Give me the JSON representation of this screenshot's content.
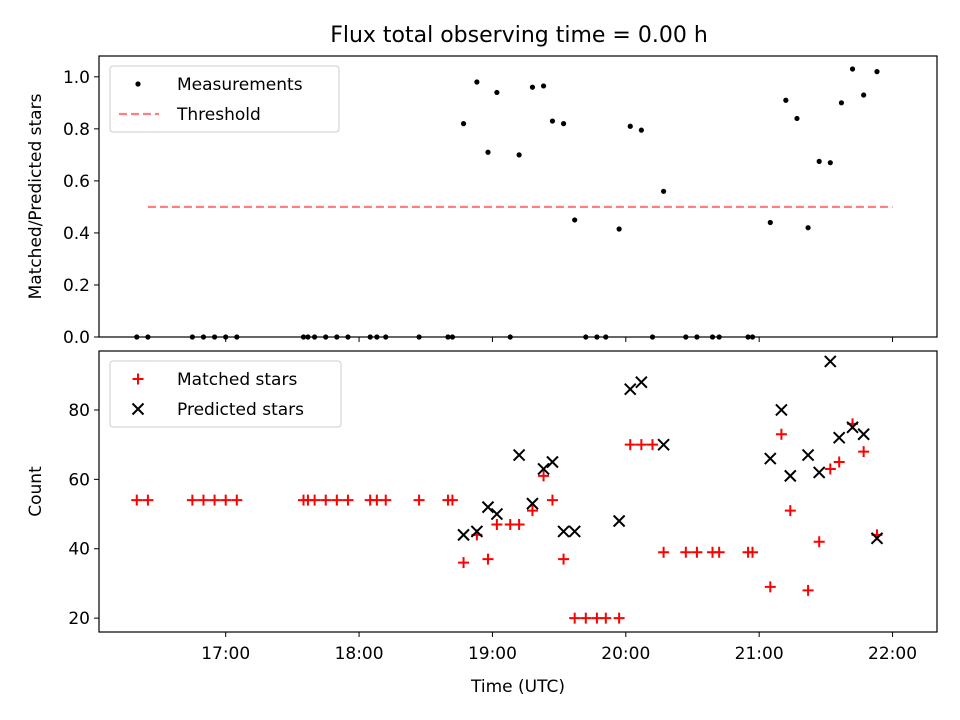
{
  "title": "Flux total observing time = 0.00 h",
  "chart_data": [
    {
      "type": "scatter",
      "xlabel": "",
      "ylabel": "Matched/Predicted stars",
      "xlim": [
        "16:03",
        "22:20"
      ],
      "ylim": [
        0,
        1.08
      ],
      "yticks": [
        0.0,
        0.2,
        0.4,
        0.6,
        0.8,
        1.0
      ],
      "ytick_labels": [
        "0.0",
        "0.2",
        "0.4",
        "0.6",
        "0.8",
        "1.0"
      ],
      "grid": false,
      "legend": "top-left",
      "series": [
        {
          "name": "Measurements",
          "marker": "dot",
          "color": "#000000",
          "points": [
            [
              "16:20",
              0
            ],
            [
              "16:25",
              0
            ],
            [
              "16:45",
              0
            ],
            [
              "16:50",
              0
            ],
            [
              "16:55",
              0
            ],
            [
              "17:00",
              0
            ],
            [
              "17:05",
              0
            ],
            [
              "17:35",
              0
            ],
            [
              "17:37",
              0
            ],
            [
              "17:40",
              0
            ],
            [
              "17:45",
              0
            ],
            [
              "17:50",
              0
            ],
            [
              "17:55",
              0
            ],
            [
              "18:05",
              0
            ],
            [
              "18:08",
              0
            ],
            [
              "18:12",
              0
            ],
            [
              "18:27",
              0
            ],
            [
              "18:40",
              0
            ],
            [
              "18:42",
              0
            ],
            [
              "18:47",
              0.82
            ],
            [
              "18:53",
              0.98
            ],
            [
              "18:58",
              0.71
            ],
            [
              "19:02",
              0.94
            ],
            [
              "19:08",
              0
            ],
            [
              "19:12",
              0.7
            ],
            [
              "19:18",
              0.96
            ],
            [
              "19:23",
              0.965
            ],
            [
              "19:27",
              0.83
            ],
            [
              "19:32",
              0.82
            ],
            [
              "19:37",
              0.45
            ],
            [
              "19:42",
              0
            ],
            [
              "19:47",
              0
            ],
            [
              "19:51",
              0
            ],
            [
              "19:57",
              0.415
            ],
            [
              "20:02",
              0.81
            ],
            [
              "20:07",
              0.795
            ],
            [
              "20:12",
              0
            ],
            [
              "20:17",
              0.56
            ],
            [
              "20:27",
              0
            ],
            [
              "20:32",
              0
            ],
            [
              "20:39",
              0
            ],
            [
              "20:42",
              0
            ],
            [
              "20:55",
              0
            ],
            [
              "20:57",
              0
            ],
            [
              "21:05",
              0.44
            ],
            [
              "21:12",
              0.91
            ],
            [
              "21:17",
              0.84
            ],
            [
              "21:22",
              0.42
            ],
            [
              "21:27",
              0.675
            ],
            [
              "21:32",
              0.67
            ],
            [
              "21:37",
              0.9
            ],
            [
              "21:42",
              1.03
            ],
            [
              "21:47",
              0.93
            ],
            [
              "21:53",
              1.02
            ]
          ]
        },
        {
          "name": "Threshold",
          "style": "dashed",
          "color": "#ff7f7f",
          "points": [
            [
              "16:25",
              0.5
            ],
            [
              "22:00",
              0.5
            ]
          ]
        }
      ]
    },
    {
      "type": "scatter",
      "xlabel": "Time (UTC)",
      "ylabel": "Count",
      "xlim": [
        "16:03",
        "22:20"
      ],
      "ylim": [
        16,
        97
      ],
      "yticks": [
        20,
        40,
        60,
        80
      ],
      "ytick_labels": [
        "20",
        "40",
        "60",
        "80"
      ],
      "xticks": [
        "17:00",
        "18:00",
        "19:00",
        "20:00",
        "21:00",
        "22:00"
      ],
      "grid": false,
      "legend": "top-left",
      "series": [
        {
          "name": "Matched stars",
          "marker": "plus",
          "color": "#ff0000",
          "points": [
            [
              "16:20",
              54
            ],
            [
              "16:25",
              54
            ],
            [
              "16:45",
              54
            ],
            [
              "16:50",
              54
            ],
            [
              "16:55",
              54
            ],
            [
              "17:00",
              54
            ],
            [
              "17:05",
              54
            ],
            [
              "17:35",
              54
            ],
            [
              "17:37",
              54
            ],
            [
              "17:40",
              54
            ],
            [
              "17:45",
              54
            ],
            [
              "17:50",
              54
            ],
            [
              "17:55",
              54
            ],
            [
              "18:05",
              54
            ],
            [
              "18:08",
              54
            ],
            [
              "18:12",
              54
            ],
            [
              "18:27",
              54
            ],
            [
              "18:40",
              54
            ],
            [
              "18:42",
              54
            ],
            [
              "18:47",
              36
            ],
            [
              "18:53",
              44
            ],
            [
              "18:58",
              37
            ],
            [
              "19:02",
              47
            ],
            [
              "19:08",
              47
            ],
            [
              "19:12",
              47
            ],
            [
              "19:18",
              51
            ],
            [
              "19:23",
              61
            ],
            [
              "19:27",
              54
            ],
            [
              "19:32",
              37
            ],
            [
              "19:37",
              20
            ],
            [
              "19:42",
              20
            ],
            [
              "19:47",
              20
            ],
            [
              "19:51",
              20
            ],
            [
              "19:57",
              20
            ],
            [
              "20:02",
              70
            ],
            [
              "20:07",
              70
            ],
            [
              "20:12",
              70
            ],
            [
              "20:17",
              39
            ],
            [
              "20:27",
              39
            ],
            [
              "20:32",
              39
            ],
            [
              "20:39",
              39
            ],
            [
              "20:42",
              39
            ],
            [
              "20:55",
              39
            ],
            [
              "20:57",
              39
            ],
            [
              "21:05",
              29
            ],
            [
              "21:10",
              73
            ],
            [
              "21:14",
              51
            ],
            [
              "21:22",
              28
            ],
            [
              "21:27",
              42
            ],
            [
              "21:32",
              63
            ],
            [
              "21:36",
              65
            ],
            [
              "21:42",
              76
            ],
            [
              "21:47",
              68
            ],
            [
              "21:53",
              44
            ]
          ]
        },
        {
          "name": "Predicted stars",
          "marker": "x",
          "color": "#000000",
          "points": [
            [
              "18:47",
              44
            ],
            [
              "18:53",
              45
            ],
            [
              "18:58",
              52
            ],
            [
              "19:02",
              50
            ],
            [
              "19:12",
              67
            ],
            [
              "19:18",
              53
            ],
            [
              "19:23",
              63
            ],
            [
              "19:27",
              65
            ],
            [
              "19:32",
              45
            ],
            [
              "19:37",
              45
            ],
            [
              "19:57",
              48
            ],
            [
              "20:02",
              86
            ],
            [
              "20:07",
              88
            ],
            [
              "20:17",
              70
            ],
            [
              "21:05",
              66
            ],
            [
              "21:10",
              80
            ],
            [
              "21:14",
              61
            ],
            [
              "21:22",
              67
            ],
            [
              "21:27",
              62
            ],
            [
              "21:32",
              94
            ],
            [
              "21:36",
              72
            ],
            [
              "21:42",
              75
            ],
            [
              "21:47",
              73
            ],
            [
              "21:53",
              43
            ]
          ]
        }
      ]
    }
  ]
}
